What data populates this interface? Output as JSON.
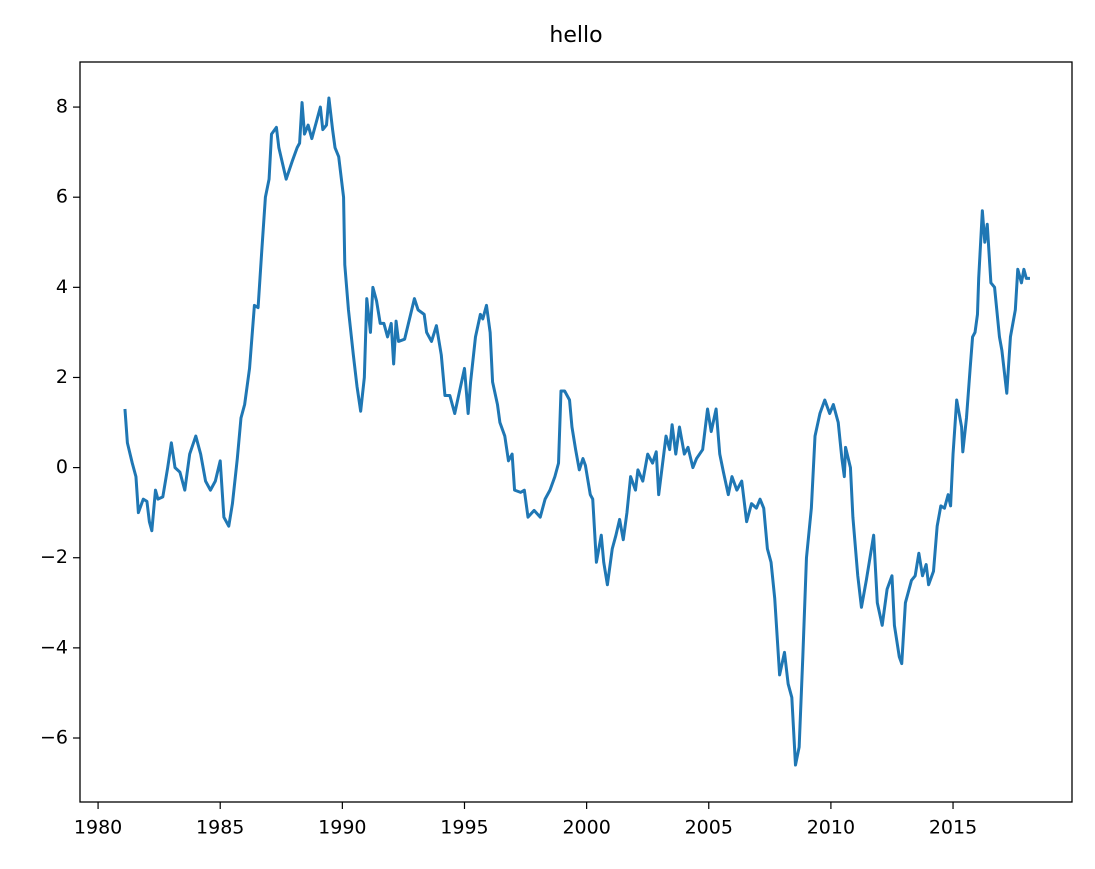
{
  "chart_data": {
    "type": "line",
    "title": "hello",
    "x": [
      1981.1,
      1981.2,
      1981.4,
      1981.55,
      1981.65,
      1981.85,
      1982.0,
      1982.1,
      1982.2,
      1982.35,
      1982.45,
      1982.65,
      1982.85,
      1983.0,
      1983.15,
      1983.35,
      1983.55,
      1983.75,
      1984.0,
      1984.2,
      1984.4,
      1984.6,
      1984.8,
      1985.0,
      1985.15,
      1985.35,
      1985.5,
      1985.7,
      1985.85,
      1986.0,
      1986.2,
      1986.4,
      1986.55,
      1986.7,
      1986.85,
      1987.0,
      1987.1,
      1987.3,
      1987.4,
      1987.7,
      1987.95,
      1988.15,
      1988.25,
      1988.35,
      1988.45,
      1988.6,
      1988.75,
      1988.9,
      1989.1,
      1989.2,
      1989.35,
      1989.45,
      1989.6,
      1989.7,
      1989.85,
      1990.05,
      1990.1,
      1990.25,
      1990.45,
      1990.6,
      1990.75,
      1990.9,
      1991.0,
      1991.15,
      1991.25,
      1991.4,
      1991.55,
      1991.7,
      1991.85,
      1992.0,
      1992.1,
      1992.2,
      1992.3,
      1992.55,
      1992.75,
      1992.95,
      1993.1,
      1993.35,
      1993.45,
      1993.65,
      1993.85,
      1994.05,
      1994.2,
      1994.4,
      1994.6,
      1994.8,
      1995.0,
      1995.15,
      1995.25,
      1995.45,
      1995.65,
      1995.75,
      1995.9,
      1996.05,
      1996.15,
      1996.35,
      1996.45,
      1996.65,
      1996.8,
      1996.95,
      1997.05,
      1997.3,
      1997.45,
      1997.6,
      1997.85,
      1998.1,
      1998.3,
      1998.5,
      1998.7,
      1998.85,
      1998.95,
      1999.1,
      1999.3,
      1999.4,
      1999.55,
      1999.7,
      1999.85,
      1999.95,
      2000.15,
      2000.25,
      2000.4,
      2000.6,
      2000.7,
      2000.85,
      2001.05,
      2001.2,
      2001.35,
      2001.5,
      2001.65,
      2001.8,
      2002.0,
      2002.1,
      2002.3,
      2002.5,
      2002.7,
      2002.85,
      2002.95,
      2003.25,
      2003.4,
      2003.5,
      2003.65,
      2003.8,
      2004.0,
      2004.15,
      2004.35,
      2004.5,
      2004.75,
      2004.95,
      2005.1,
      2005.3,
      2005.45,
      2005.6,
      2005.8,
      2005.95,
      2006.15,
      2006.35,
      2006.55,
      2006.75,
      2006.95,
      2007.1,
      2007.25,
      2007.4,
      2007.55,
      2007.7,
      2007.9,
      2008.1,
      2008.25,
      2008.4,
      2008.55,
      2008.7,
      2008.85,
      2009.0,
      2009.2,
      2009.35,
      2009.55,
      2009.75,
      2009.95,
      2010.1,
      2010.3,
      2010.45,
      2010.55,
      2010.6,
      2010.8,
      2010.9,
      2011.1,
      2011.25,
      2011.45,
      2011.6,
      2011.75,
      2011.9,
      2012.1,
      2012.3,
      2012.5,
      2012.6,
      2012.8,
      2012.9,
      2013.05,
      2013.3,
      2013.45,
      2013.6,
      2013.75,
      2013.9,
      2014.0,
      2014.2,
      2014.35,
      2014.5,
      2014.65,
      2014.8,
      2014.9,
      2015.0,
      2015.15,
      2015.35,
      2015.4,
      2015.55,
      2015.7,
      2015.8,
      2015.9,
      2016.0,
      2016.05,
      2016.2,
      2016.3,
      2016.4,
      2016.55,
      2016.7,
      2016.9,
      2017.0,
      2017.2,
      2017.35,
      2017.55,
      2017.65,
      2017.8,
      2017.9,
      2018.0,
      2018.15
    ],
    "series": [
      {
        "color": "#1f77b4",
        "values": [
          1.3,
          0.55,
          0.1,
          -0.2,
          -1.0,
          -0.7,
          -0.75,
          -1.2,
          -1.4,
          -0.5,
          -0.7,
          -0.65,
          0.0,
          0.55,
          0.0,
          -0.1,
          -0.5,
          0.3,
          0.7,
          0.3,
          -0.3,
          -0.5,
          -0.3,
          0.15,
          -1.1,
          -1.3,
          -0.8,
          0.2,
          1.1,
          1.4,
          2.2,
          3.6,
          3.55,
          4.8,
          6.0,
          6.4,
          7.4,
          7.55,
          7.1,
          6.4,
          6.8,
          7.1,
          7.2,
          8.1,
          7.4,
          7.6,
          7.3,
          7.6,
          8.0,
          7.5,
          7.6,
          8.2,
          7.5,
          7.1,
          6.9,
          6.0,
          4.5,
          3.5,
          2.5,
          1.8,
          1.25,
          2.0,
          3.75,
          3.0,
          4.0,
          3.7,
          3.2,
          3.2,
          2.9,
          3.2,
          2.3,
          3.25,
          2.8,
          2.85,
          3.3,
          3.75,
          3.5,
          3.4,
          3.0,
          2.8,
          3.15,
          2.5,
          1.6,
          1.6,
          1.2,
          1.7,
          2.2,
          1.2,
          1.9,
          2.9,
          3.4,
          3.3,
          3.6,
          3.0,
          1.9,
          1.4,
          1.0,
          0.7,
          0.15,
          0.3,
          -0.5,
          -0.55,
          -0.5,
          -1.1,
          -0.95,
          -1.1,
          -0.7,
          -0.5,
          -0.2,
          0.1,
          1.7,
          1.7,
          1.5,
          0.9,
          0.4,
          -0.05,
          0.2,
          0.05,
          -0.6,
          -0.7,
          -2.1,
          -1.5,
          -2.1,
          -2.6,
          -1.8,
          -1.5,
          -1.15,
          -1.6,
          -1.0,
          -0.2,
          -0.5,
          -0.05,
          -0.3,
          0.3,
          0.1,
          0.35,
          -0.6,
          0.7,
          0.4,
          0.95,
          0.3,
          0.9,
          0.3,
          0.45,
          0.0,
          0.2,
          0.4,
          1.3,
          0.8,
          1.3,
          0.3,
          -0.1,
          -0.6,
          -0.2,
          -0.5,
          -0.3,
          -1.2,
          -0.8,
          -0.9,
          -0.7,
          -0.9,
          -1.8,
          -2.1,
          -2.9,
          -4.6,
          -4.1,
          -4.8,
          -5.1,
          -6.6,
          -6.2,
          -4.2,
          -2.0,
          -0.9,
          0.7,
          1.2,
          1.5,
          1.2,
          1.4,
          1.0,
          0.2,
          -0.2,
          0.45,
          0.0,
          -1.1,
          -2.4,
          -3.1,
          -2.5,
          -2.0,
          -1.5,
          -3.0,
          -3.5,
          -2.7,
          -2.4,
          -3.5,
          -4.2,
          -4.35,
          -3.0,
          -2.5,
          -2.4,
          -1.9,
          -2.4,
          -2.15,
          -2.6,
          -2.3,
          -1.3,
          -0.85,
          -0.9,
          -0.6,
          -0.85,
          0.3,
          1.5,
          0.9,
          0.35,
          1.1,
          2.2,
          2.9,
          3.0,
          3.4,
          4.2,
          5.7,
          5.0,
          5.4,
          4.1,
          4.0,
          2.9,
          2.6,
          1.65,
          2.9,
          3.5,
          4.4,
          4.1,
          4.4,
          4.2,
          4.2
        ]
      }
    ],
    "xlim": [
      1979.26,
      2019.87
    ],
    "ylim": [
      -7.42,
      9.0
    ],
    "xticks": [
      1980,
      1985,
      1990,
      1995,
      2000,
      2005,
      2010,
      2015
    ],
    "yticks": [
      {
        "value": -6,
        "label": "−6"
      },
      {
        "value": -4,
        "label": "−4"
      },
      {
        "value": -2,
        "label": "−2"
      },
      0,
      2,
      4,
      6,
      8
    ],
    "grid": false
  }
}
